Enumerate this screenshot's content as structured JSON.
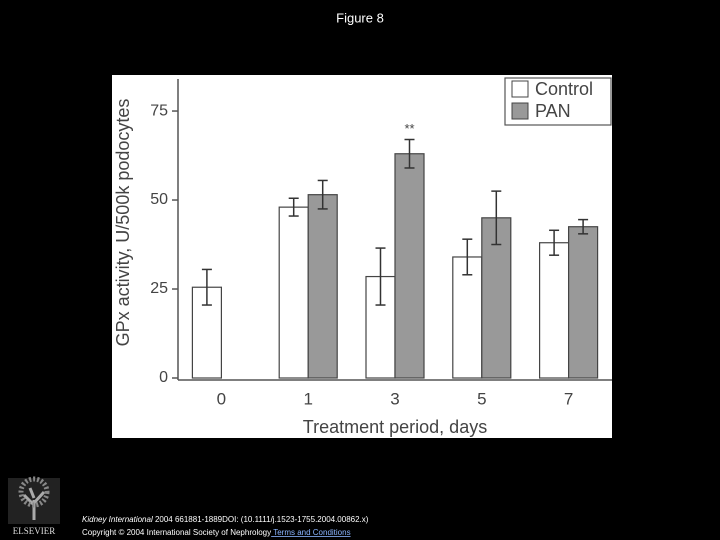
{
  "page": {
    "heading": "Figure 8",
    "citation_journal": "Kidney International",
    "citation_rest": " 2004 661881-1889DOI: (10.1111/j.1523-1755.2004.00862.x)",
    "copyright": "Copyright © 2004 International Society of Nephrology",
    "link": " Terms and Conditions",
    "logo_text": "ELSEVIER"
  },
  "chart_data": {
    "type": "bar",
    "y_label": "GPx activity, U/500k podocytes",
    "x_label": "Treatment period, days",
    "annotation": "**",
    "categories": [
      "0",
      "1",
      "3",
      "5",
      "7"
    ],
    "series": [
      {
        "name": "Control",
        "color": "#ffffff",
        "values": [
          25.5,
          48,
          28.5,
          34,
          38
        ],
        "errors": [
          5,
          2.5,
          8,
          5,
          3.5
        ]
      },
      {
        "name": "PAN",
        "color": "#999999",
        "values": [
          null,
          51.5,
          63,
          45,
          42.5
        ],
        "errors": [
          null,
          4,
          4,
          7.5,
          2
        ]
      }
    ],
    "ylim": [
      0,
      84
    ],
    "yticks": [
      0,
      25,
      50,
      75
    ],
    "legend": "upper right"
  }
}
